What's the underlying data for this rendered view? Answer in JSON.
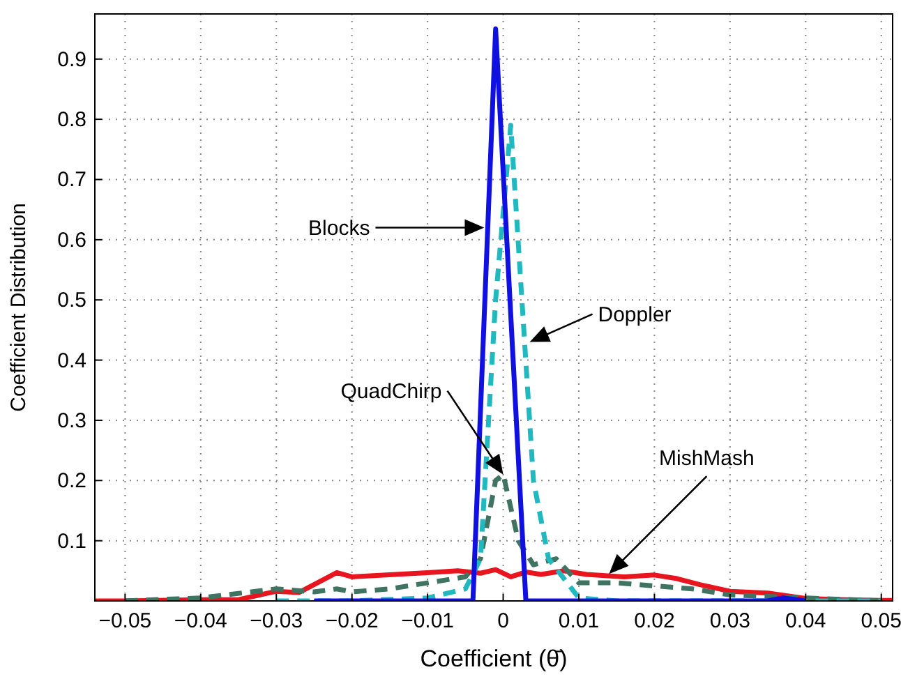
{
  "chart_data": {
    "type": "line",
    "xlabel": "Coefficient (θ̄)",
    "ylabel": "Coefficient Distribution",
    "xlim": [
      -0.054,
      0.0515
    ],
    "ylim": [
      0,
      0.975
    ],
    "xticks": [
      {
        "value": -0.05,
        "label": "−0.05"
      },
      {
        "value": -0.04,
        "label": "−0.04"
      },
      {
        "value": -0.03,
        "label": "−0.03"
      },
      {
        "value": -0.02,
        "label": "−0.02"
      },
      {
        "value": -0.01,
        "label": "−0.01"
      },
      0,
      0.01,
      0.02,
      0.03,
      0.04,
      0.05
    ],
    "yticks": [
      0.1,
      0.2,
      0.3,
      0.4,
      0.5,
      0.6,
      0.7,
      0.8,
      0.9
    ],
    "grid": true,
    "series": [
      {
        "color": "#e8141e",
        "line_style": "solid",
        "x": [
          -0.054,
          -0.05,
          -0.04,
          -0.035,
          -0.03,
          -0.027,
          -0.022,
          -0.02,
          -0.01,
          -0.006,
          -0.003,
          -0.001,
          0.001,
          0.003,
          0.005,
          0.008,
          0.011,
          0.016,
          0.02,
          0.023,
          0.026,
          0.03,
          0.035,
          0.04,
          0.045,
          0.05,
          0.0515
        ],
        "values": [
          0,
          0,
          0.002,
          0.002,
          0.016,
          0.014,
          0.047,
          0.04,
          0.047,
          0.05,
          0.046,
          0.052,
          0.04,
          0.048,
          0.044,
          0.05,
          0.044,
          0.04,
          0.043,
          0.037,
          0.027,
          0.016,
          0.013,
          0.004,
          0.002,
          0.001,
          0.001
        ]
      },
      {
        "color": "#3f7462",
        "line_style": "dashed",
        "x": [
          -0.05,
          -0.04,
          -0.03,
          -0.025,
          -0.022,
          -0.02,
          -0.015,
          -0.01,
          -0.005,
          -0.003,
          -0.001,
          0,
          0.002,
          0.004,
          0.007,
          0.01,
          0.015,
          0.02,
          0.025,
          0.03,
          0.04,
          0.05
        ],
        "values": [
          0,
          0.005,
          0.02,
          0.015,
          0.02,
          0.015,
          0.02,
          0.03,
          0.04,
          0.07,
          0.2,
          0.21,
          0.1,
          0.06,
          0.07,
          0.03,
          0.03,
          0.025,
          0.02,
          0.01,
          0.005,
          0
        ]
      },
      {
        "color": "#22b8c0",
        "line_style": "dashed",
        "x": [
          -0.03,
          -0.02,
          -0.01,
          -0.005,
          -0.003,
          -0.001,
          0.001,
          0.004,
          0.006,
          0.01,
          0.015,
          0.05
        ],
        "values": [
          0,
          0,
          0.005,
          0.02,
          0.07,
          0.5,
          0.79,
          0.2,
          0.07,
          0.005,
          0,
          0
        ]
      },
      {
        "color": "#1010e0",
        "line_style": "solid",
        "x": [
          -0.025,
          -0.004,
          -0.001,
          0.003,
          0.035,
          0.037,
          0.04
        ],
        "values": [
          0,
          0,
          0.95,
          0,
          0,
          0.005,
          0
        ]
      }
    ],
    "annotations": [
      {
        "text": "Blocks",
        "x": -0.0025,
        "y": 0.62
      },
      {
        "text": "Doppler",
        "x": 0.0035,
        "y": 0.43
      },
      {
        "text": "QuadChirp",
        "x": 0,
        "y": 0.21
      },
      {
        "text": "MishMash",
        "x": 0.014,
        "y": 0.045
      }
    ]
  }
}
